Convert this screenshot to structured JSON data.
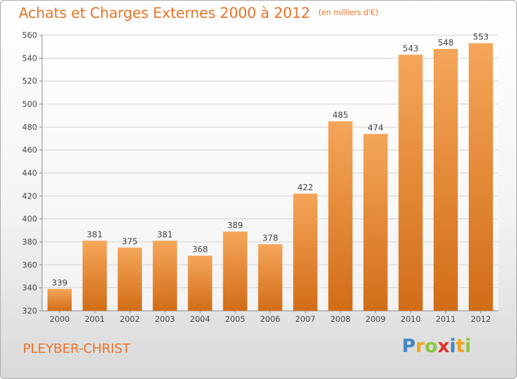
{
  "title": "Achats et Charges Externes 2000 à 2012",
  "subtitle": "(en milliers d'€)",
  "commune": "PLEYBER-CHRIST",
  "logo": {
    "letters": [
      "P",
      "r",
      "o",
      "x",
      "i",
      "t",
      "i"
    ],
    "colors": [
      "#3f86c6",
      "#f0a31f",
      "#8cc63f",
      "#e2322a",
      "#3f86c6",
      "#f0a31f",
      "#8cc63f"
    ]
  },
  "colors": {
    "accent": "#e8742a",
    "bar_top": "#f5a65a",
    "bar_bottom": "#d26d17"
  },
  "chart_data": {
    "type": "bar",
    "categories": [
      "2000",
      "2001",
      "2002",
      "2003",
      "2004",
      "2005",
      "2006",
      "2007",
      "2008",
      "2009",
      "2010",
      "2011",
      "2012"
    ],
    "values": [
      339,
      381,
      375,
      381,
      368,
      389,
      378,
      422,
      485,
      474,
      543,
      548,
      553
    ],
    "ylim": [
      320,
      560
    ],
    "yticks": [
      320,
      340,
      360,
      380,
      400,
      420,
      440,
      460,
      480,
      500,
      520,
      540,
      560
    ],
    "grid": true,
    "xlabel": "",
    "ylabel": ""
  }
}
